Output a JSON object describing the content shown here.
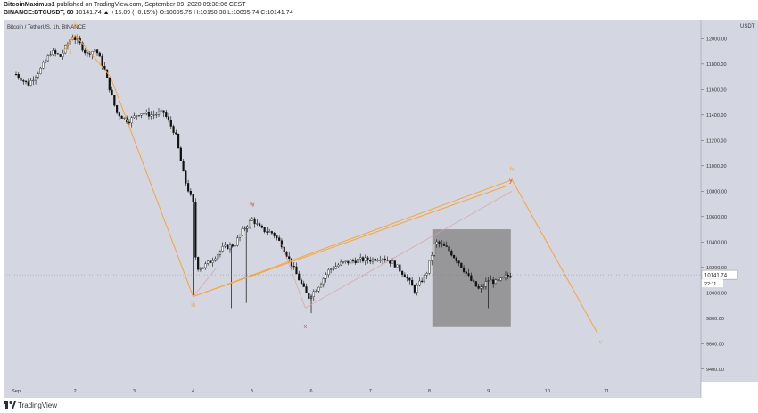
{
  "header": {
    "author": "BitcoinMaximus1",
    "published": "published on TradingView.com, September 09, 2020 09:38:06 CEST",
    "symbol": "BINANCE:BTCUSDT, 60",
    "ohlc": "10141.74 ▲ +15.09 (+0.15%) O:10095.75 H:10150.30 L:10095.74 C:10141.74"
  },
  "footer": {
    "brand": "TradingView",
    "logo_icon": "tradingview-logo-icon"
  },
  "colors": {
    "bg": "#d4d7e1",
    "axis_bg": "#d4d7e1",
    "candle": "#111111",
    "orange": "#f7a43a",
    "red": "#e0453a",
    "pink": "#d9a0a8",
    "box": "#8c8c8c"
  },
  "chart_data": {
    "type": "candlestick",
    "title": "Bitcoin / TetherUS, 1h, BINANCE",
    "currency": "USDT",
    "ylim": [
      9300,
      12150
    ],
    "xlim": [
      0,
      11.6
    ],
    "y_ticks": [
      "12000.00",
      "11800.00",
      "11600.00",
      "11400.00",
      "11200.00",
      "11000.00",
      "10800.00",
      "10600.00",
      "10400.00",
      "10200.00",
      "10000.00",
      "9800.00",
      "9600.00",
      "9400.00"
    ],
    "y_tick_values": [
      12000,
      11800,
      11600,
      11400,
      11200,
      11000,
      10800,
      10600,
      10400,
      10200,
      10000,
      9800,
      9600,
      9400
    ],
    "x_ticks": [
      "Sep",
      "2",
      "3",
      "4",
      "5",
      "6",
      "7",
      "8",
      "9",
      "10",
      "11"
    ],
    "x_tick_values": [
      0,
      1,
      2,
      3,
      4,
      5,
      6,
      7,
      8,
      9,
      10
    ],
    "last_price": "10141.74",
    "countdown": "22:11",
    "path_points": [
      {
        "x": 0,
        "p": 11720
      },
      {
        "x": 0.2,
        "p": 11640
      },
      {
        "x": 0.4,
        "p": 11750
      },
      {
        "x": 0.6,
        "p": 11900
      },
      {
        "x": 0.75,
        "p": 11860
      },
      {
        "x": 0.95,
        "p": 12020
      },
      {
        "x": 1.05,
        "p": 11980
      },
      {
        "x": 1.2,
        "p": 11880
      },
      {
        "x": 1.35,
        "p": 11920
      },
      {
        "x": 1.5,
        "p": 11750
      },
      {
        "x": 1.7,
        "p": 11420
      },
      {
        "x": 1.9,
        "p": 11350
      },
      {
        "x": 2.1,
        "p": 11420
      },
      {
        "x": 2.3,
        "p": 11400
      },
      {
        "x": 2.5,
        "p": 11420
      },
      {
        "x": 2.7,
        "p": 11250
      },
      {
        "x": 2.85,
        "p": 10900
      },
      {
        "x": 3.0,
        "p": 10700
      },
      {
        "x": 3.05,
        "p": 10200
      },
      {
        "x": 3.15,
        "p": 10200
      },
      {
        "x": 3.3,
        "p": 10250
      },
      {
        "x": 3.5,
        "p": 10350
      },
      {
        "x": 3.7,
        "p": 10380
      },
      {
        "x": 3.85,
        "p": 10500
      },
      {
        "x": 4.0,
        "p": 10580
      },
      {
        "x": 4.15,
        "p": 10500
      },
      {
        "x": 4.35,
        "p": 10470
      },
      {
        "x": 4.5,
        "p": 10380
      },
      {
        "x": 4.65,
        "p": 10240
      },
      {
        "x": 4.8,
        "p": 10100
      },
      {
        "x": 4.95,
        "p": 9960
      },
      {
        "x": 5.1,
        "p": 10040
      },
      {
        "x": 5.3,
        "p": 10180
      },
      {
        "x": 5.5,
        "p": 10230
      },
      {
        "x": 5.8,
        "p": 10260
      },
      {
        "x": 6.0,
        "p": 10260
      },
      {
        "x": 6.2,
        "p": 10280
      },
      {
        "x": 6.4,
        "p": 10230
      },
      {
        "x": 6.6,
        "p": 10130
      },
      {
        "x": 6.75,
        "p": 10020
      },
      {
        "x": 6.95,
        "p": 10150
      },
      {
        "x": 7.1,
        "p": 10400
      },
      {
        "x": 7.3,
        "p": 10350
      },
      {
        "x": 7.5,
        "p": 10240
      },
      {
        "x": 7.7,
        "p": 10100
      },
      {
        "x": 7.85,
        "p": 10020
      },
      {
        "x": 8.0,
        "p": 10100
      },
      {
        "x": 8.15,
        "p": 10080
      },
      {
        "x": 8.3,
        "p": 10130
      },
      {
        "x": 8.4,
        "p": 10140
      }
    ],
    "wicks": [
      {
        "x": 3.65,
        "lo": 9880
      },
      {
        "x": 3.9,
        "lo": 9920
      },
      {
        "x": 5.0,
        "lo": 9840
      },
      {
        "x": 3.0,
        "lo": 9980
      },
      {
        "x": 8.0,
        "lo": 9880
      }
    ],
    "orange_lines": [
      [
        {
          "x": 0.8,
          "p": 11900
        },
        {
          "x": 1.0,
          "p": 12030
        },
        {
          "x": 1.6,
          "p": 11700
        },
        {
          "x": 3.0,
          "p": 9970
        },
        {
          "x": 8.4,
          "p": 10890
        },
        {
          "x": 9.85,
          "p": 9680
        }
      ],
      [
        {
          "x": 3.0,
          "p": 9970
        },
        {
          "x": 8.3,
          "p": 10840
        }
      ]
    ],
    "pink_lines": [
      [
        {
          "x": 3.0,
          "p": 9970
        },
        {
          "x": 3.4,
          "p": 10200
        }
      ],
      [
        {
          "x": 4.9,
          "p": 9880
        },
        {
          "x": 8.4,
          "p": 10800
        }
      ],
      [
        {
          "x": 4.5,
          "p": 10380
        },
        {
          "x": 4.9,
          "p": 9880
        }
      ]
    ],
    "box": {
      "x0": 7.05,
      "x1": 8.38,
      "p0": 9730,
      "p1": 10500
    },
    "labels": [
      {
        "text": "ii",
        "x": 1.0,
        "p": 12090,
        "color": "orange"
      },
      {
        "text": "i",
        "x": 0.93,
        "p": 11880,
        "color": "orange"
      },
      {
        "text": "iii",
        "x": 3.0,
        "p": 9890,
        "color": "orange"
      },
      {
        "text": "w",
        "x": 4.0,
        "p": 10680,
        "color": "red"
      },
      {
        "text": "x",
        "x": 4.9,
        "p": 9720,
        "color": "red"
      },
      {
        "text": "iv",
        "x": 8.4,
        "p": 10960,
        "color": "orange"
      },
      {
        "text": "y",
        "x": 8.38,
        "p": 10870,
        "color": "red"
      },
      {
        "text": "v",
        "x": 9.9,
        "p": 9600,
        "color": "orange"
      }
    ]
  }
}
